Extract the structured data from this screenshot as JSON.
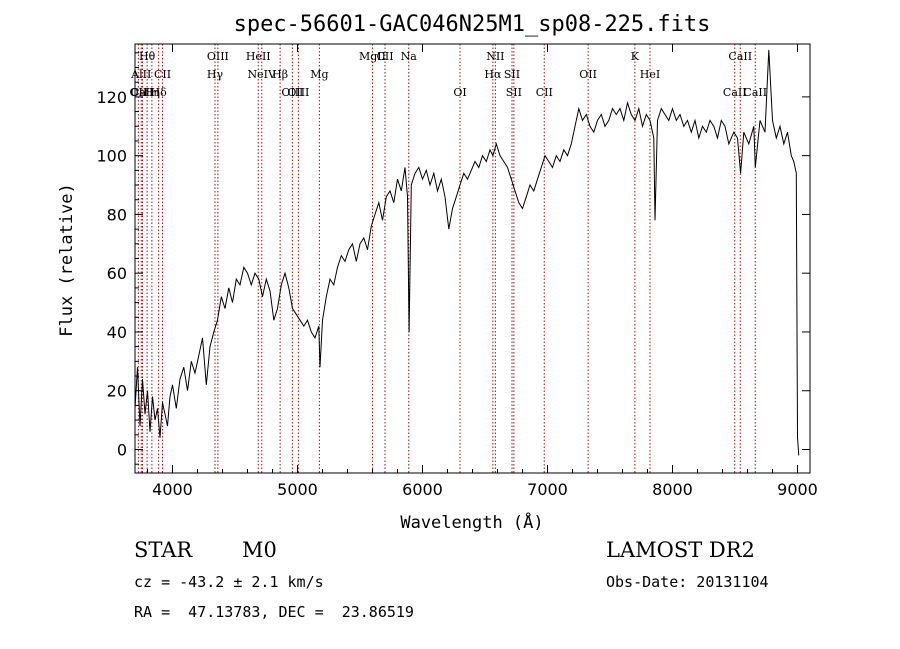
{
  "chart_data": {
    "type": "line",
    "title": "spec-56601-GAC046N25M1_sp08-225.fits",
    "xlabel": "Wavelength (Å)",
    "ylabel": "Flux (relative)",
    "xlim": [
      3700,
      9100
    ],
    "ylim": [
      -8,
      138
    ],
    "xticks": [
      4000,
      5000,
      6000,
      7000,
      8000,
      9000
    ],
    "yticks": [
      0,
      20,
      40,
      60,
      80,
      100,
      120
    ],
    "grid": false,
    "series": [
      {
        "color": "#000000",
        "points": [
          [
            3700,
            14
          ],
          [
            3720,
            28
          ],
          [
            3740,
            8
          ],
          [
            3760,
            24
          ],
          [
            3780,
            12
          ],
          [
            3800,
            20
          ],
          [
            3820,
            6
          ],
          [
            3840,
            18
          ],
          [
            3860,
            10
          ],
          [
            3880,
            14
          ],
          [
            3900,
            4
          ],
          [
            3920,
            16
          ],
          [
            3940,
            12
          ],
          [
            3960,
            8
          ],
          [
            3980,
            18
          ],
          [
            4000,
            22
          ],
          [
            4030,
            14
          ],
          [
            4060,
            24
          ],
          [
            4090,
            28
          ],
          [
            4120,
            20
          ],
          [
            4150,
            30
          ],
          [
            4180,
            26
          ],
          [
            4210,
            32
          ],
          [
            4240,
            38
          ],
          [
            4270,
            22
          ],
          [
            4300,
            35
          ],
          [
            4330,
            40
          ],
          [
            4360,
            44
          ],
          [
            4390,
            52
          ],
          [
            4420,
            48
          ],
          [
            4450,
            55
          ],
          [
            4480,
            50
          ],
          [
            4510,
            58
          ],
          [
            4540,
            56
          ],
          [
            4570,
            62
          ],
          [
            4600,
            60
          ],
          [
            4630,
            56
          ],
          [
            4660,
            60
          ],
          [
            4690,
            58
          ],
          [
            4720,
            52
          ],
          [
            4750,
            58
          ],
          [
            4780,
            54
          ],
          [
            4810,
            44
          ],
          [
            4840,
            48
          ],
          [
            4870,
            56
          ],
          [
            4900,
            60
          ],
          [
            4930,
            55
          ],
          [
            4960,
            48
          ],
          [
            4990,
            46
          ],
          [
            5020,
            44
          ],
          [
            5050,
            42
          ],
          [
            5080,
            44
          ],
          [
            5110,
            40
          ],
          [
            5140,
            38
          ],
          [
            5170,
            42
          ],
          [
            5180,
            28
          ],
          [
            5200,
            44
          ],
          [
            5230,
            52
          ],
          [
            5260,
            58
          ],
          [
            5290,
            56
          ],
          [
            5320,
            62
          ],
          [
            5350,
            66
          ],
          [
            5380,
            64
          ],
          [
            5410,
            68
          ],
          [
            5440,
            70
          ],
          [
            5470,
            64
          ],
          [
            5500,
            70
          ],
          [
            5530,
            72
          ],
          [
            5560,
            68
          ],
          [
            5590,
            76
          ],
          [
            5620,
            80
          ],
          [
            5650,
            84
          ],
          [
            5680,
            78
          ],
          [
            5710,
            86
          ],
          [
            5740,
            88
          ],
          [
            5770,
            84
          ],
          [
            5800,
            92
          ],
          [
            5830,
            88
          ],
          [
            5860,
            96
          ],
          [
            5880,
            86
          ],
          [
            5893,
            40
          ],
          [
            5910,
            90
          ],
          [
            5940,
            94
          ],
          [
            5970,
            96
          ],
          [
            6000,
            92
          ],
          [
            6030,
            95
          ],
          [
            6060,
            90
          ],
          [
            6090,
            94
          ],
          [
            6120,
            88
          ],
          [
            6150,
            92
          ],
          [
            6180,
            86
          ],
          [
            6210,
            75
          ],
          [
            6240,
            82
          ],
          [
            6270,
            86
          ],
          [
            6300,
            90
          ],
          [
            6330,
            94
          ],
          [
            6360,
            92
          ],
          [
            6390,
            95
          ],
          [
            6420,
            98
          ],
          [
            6450,
            96
          ],
          [
            6480,
            100
          ],
          [
            6510,
            98
          ],
          [
            6540,
            102
          ],
          [
            6563,
            100
          ],
          [
            6590,
            104
          ],
          [
            6620,
            100
          ],
          [
            6650,
            98
          ],
          [
            6680,
            96
          ],
          [
            6710,
            92
          ],
          [
            6740,
            88
          ],
          [
            6770,
            84
          ],
          [
            6800,
            82
          ],
          [
            6830,
            86
          ],
          [
            6860,
            90
          ],
          [
            6890,
            88
          ],
          [
            6920,
            92
          ],
          [
            6950,
            96
          ],
          [
            6980,
            100
          ],
          [
            7010,
            98
          ],
          [
            7040,
            96
          ],
          [
            7070,
            100
          ],
          [
            7100,
            98
          ],
          [
            7130,
            102
          ],
          [
            7160,
            100
          ],
          [
            7190,
            104
          ],
          [
            7220,
            110
          ],
          [
            7250,
            116
          ],
          [
            7280,
            112
          ],
          [
            7310,
            114
          ],
          [
            7340,
            110
          ],
          [
            7370,
            108
          ],
          [
            7400,
            112
          ],
          [
            7430,
            114
          ],
          [
            7460,
            110
          ],
          [
            7490,
            112
          ],
          [
            7520,
            116
          ],
          [
            7550,
            114
          ],
          [
            7580,
            116
          ],
          [
            7610,
            112
          ],
          [
            7640,
            118
          ],
          [
            7670,
            114
          ],
          [
            7700,
            112
          ],
          [
            7730,
            116
          ],
          [
            7760,
            110
          ],
          [
            7790,
            114
          ],
          [
            7820,
            112
          ],
          [
            7850,
            106
          ],
          [
            7860,
            78
          ],
          [
            7880,
            112
          ],
          [
            7910,
            116
          ],
          [
            7940,
            114
          ],
          [
            7970,
            112
          ],
          [
            8000,
            116
          ],
          [
            8030,
            112
          ],
          [
            8060,
            114
          ],
          [
            8090,
            110
          ],
          [
            8120,
            112
          ],
          [
            8150,
            108
          ],
          [
            8180,
            112
          ],
          [
            8210,
            106
          ],
          [
            8240,
            110
          ],
          [
            8270,
            108
          ],
          [
            8300,
            112
          ],
          [
            8330,
            110
          ],
          [
            8360,
            106
          ],
          [
            8390,
            112
          ],
          [
            8420,
            110
          ],
          [
            8450,
            104
          ],
          [
            8490,
            108
          ],
          [
            8520,
            106
          ],
          [
            8545,
            94
          ],
          [
            8570,
            108
          ],
          [
            8610,
            104
          ],
          [
            8650,
            110
          ],
          [
            8662,
            96
          ],
          [
            8700,
            112
          ],
          [
            8740,
            108
          ],
          [
            8770,
            136
          ],
          [
            8800,
            112
          ],
          [
            8830,
            106
          ],
          [
            8860,
            110
          ],
          [
            8890,
            104
          ],
          [
            8920,
            108
          ],
          [
            8950,
            100
          ],
          [
            8970,
            98
          ],
          [
            8990,
            94
          ],
          [
            9000,
            4
          ],
          [
            9010,
            -2
          ]
        ]
      }
    ],
    "spectral_lines": [
      {
        "label": "Hθ",
        "wavelength": 3797,
        "row": 1
      },
      {
        "label": "AlII",
        "wavelength": 3750,
        "row": 2
      },
      {
        "label": "OII",
        "wavelength": 3727,
        "row": 3
      },
      {
        "label": "Hη",
        "wavelength": 3835,
        "row": 3
      },
      {
        "label": "CaII",
        "wavelength": 3760,
        "row": 3
      },
      {
        "label": "Hδ",
        "wavelength": 3889,
        "row": 3
      },
      {
        "label": "CII",
        "wavelength": 3920,
        "row": 2
      },
      {
        "label": "OIII",
        "wavelength": 4363,
        "row": 1
      },
      {
        "label": "Hγ",
        "wavelength": 4340,
        "row": 2
      },
      {
        "label": "HeII",
        "wavelength": 4686,
        "row": 1
      },
      {
        "label": "NeIV",
        "wavelength": 4714,
        "row": 2
      },
      {
        "label": "Hβ",
        "wavelength": 4861,
        "row": 2
      },
      {
        "label": "OIII",
        "wavelength": 4959,
        "row": 3
      },
      {
        "label": "OIII",
        "wavelength": 5007,
        "row": 3
      },
      {
        "label": "Mg",
        "wavelength": 5175,
        "row": 2
      },
      {
        "label": "MgII",
        "wavelength": 5600,
        "row": 1
      },
      {
        "label": "CII",
        "wavelength": 5700,
        "row": 1
      },
      {
        "label": "Na",
        "wavelength": 5890,
        "row": 1
      },
      {
        "label": "OI",
        "wavelength": 6300,
        "row": 3
      },
      {
        "label": "NII",
        "wavelength": 6583,
        "row": 1
      },
      {
        "label": "Hα",
        "wavelength": 6563,
        "row": 2
      },
      {
        "label": "SII",
        "wavelength": 6716,
        "row": 2
      },
      {
        "label": "SII",
        "wavelength": 6731,
        "row": 3
      },
      {
        "label": "CII",
        "wavelength": 6974,
        "row": 3
      },
      {
        "label": "OII",
        "wavelength": 7325,
        "row": 2
      },
      {
        "label": "K",
        "wavelength": 7699,
        "row": 1
      },
      {
        "label": "HeI",
        "wavelength": 7820,
        "row": 2
      },
      {
        "label": "CaII",
        "wavelength": 8542,
        "row": 1
      },
      {
        "label": "CaII",
        "wavelength": 8498,
        "row": 3
      },
      {
        "label": "CaII",
        "wavelength": 8662,
        "row": 3
      }
    ]
  },
  "info": {
    "object_class": "STAR",
    "subclass": "M0",
    "survey": "LAMOST DR2",
    "cz": "cz = -43.2 ± 2.1 km/s",
    "obs_date": "Obs-Date: 20131104",
    "coords": "RA =  47.13783, DEC =  23.86519"
  }
}
